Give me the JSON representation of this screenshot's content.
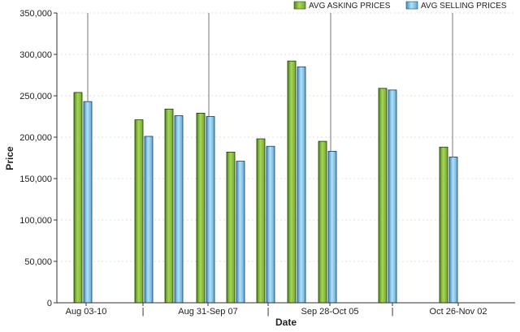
{
  "chart_data": {
    "type": "bar",
    "title": "",
    "xlabel": "Date",
    "ylabel": "Price",
    "ylim": [
      0,
      350000
    ],
    "yticks": [
      0,
      50000,
      100000,
      150000,
      200000,
      250000,
      300000,
      350000
    ],
    "ytick_labels": [
      "0",
      "50,000",
      "100,000",
      "150,000",
      "200,000",
      "250,000",
      "300,000",
      "350,000"
    ],
    "xtick_labels": [
      "Aug 03-10",
      "|",
      "Aug 31-Sep 07",
      "|",
      "Sep 28-Oct 05",
      "|",
      "Oct 26-Nov 02"
    ],
    "grid": true,
    "legend_position": "top-right",
    "series": [
      {
        "name": "AVG ASKING PRICES",
        "color": "#8dc63f",
        "values": [
          254000,
          null,
          221000,
          234000,
          229000,
          182000,
          198000,
          292000,
          195000,
          null,
          259000,
          null,
          188000,
          null
        ]
      },
      {
        "name": "AVG SELLING PRICES",
        "color": "#6fb8e0",
        "values": [
          243000,
          null,
          201000,
          226000,
          225000,
          171000,
          189000,
          285000,
          183000,
          null,
          257000,
          null,
          176000,
          null
        ]
      }
    ]
  }
}
